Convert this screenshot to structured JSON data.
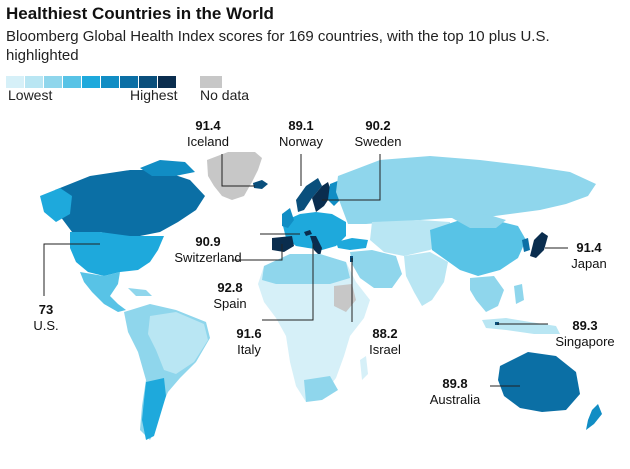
{
  "title": "Healthiest Countries in the World",
  "subtitle": "Bloomberg Global Health Index scores for 169 countries, with the top 10 plus U.S. highlighted",
  "legend": {
    "low_label": "Lowest",
    "high_label": "Highest",
    "nodata_label": "No data",
    "scale_colors": [
      "#d6f0f8",
      "#b9e6f3",
      "#8fd6ec",
      "#58c3e6",
      "#1ea9dc",
      "#118dc4",
      "#0b6fa5",
      "#0a4f7c",
      "#0a2d4e"
    ],
    "nodata_color": "#c7c7c7"
  },
  "callouts": [
    {
      "country": "Iceland",
      "score": "91.4"
    },
    {
      "country": "Norway",
      "score": "89.1"
    },
    {
      "country": "Sweden",
      "score": "90.2"
    },
    {
      "country": "Switzerland",
      "score": "90.9"
    },
    {
      "country": "Japan",
      "score": "91.4"
    },
    {
      "country": "Spain",
      "score": "92.8"
    },
    {
      "country": "U.S.",
      "score": "73"
    },
    {
      "country": "Singapore",
      "score": "89.3"
    },
    {
      "country": "Italy",
      "score": "91.6"
    },
    {
      "country": "Israel",
      "score": "88.2"
    },
    {
      "country": "Australia",
      "score": "89.8"
    }
  ]
}
